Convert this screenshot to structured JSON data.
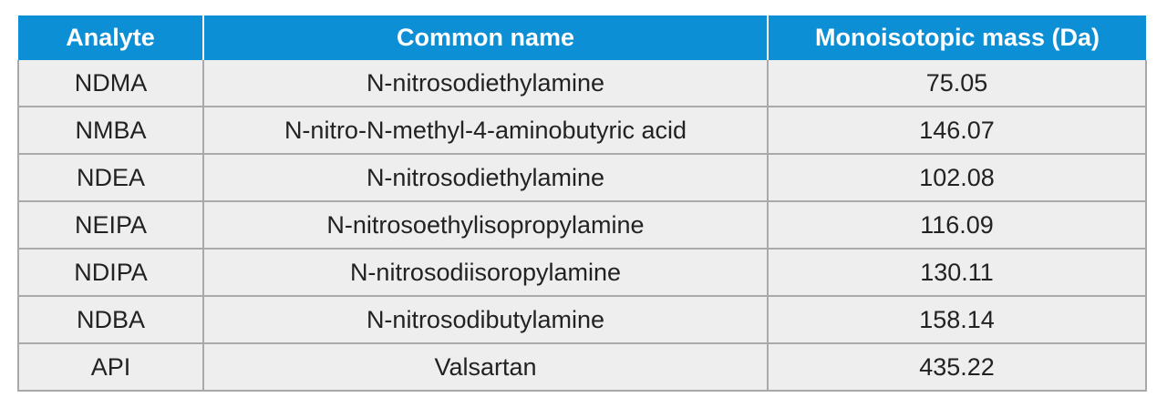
{
  "table": {
    "headers": [
      "Analyte",
      "Common name",
      "Monoisotopic mass (Da)"
    ],
    "rows": [
      [
        "NDMA",
        "N-nitrosodiethylamine",
        "75.05"
      ],
      [
        "NMBA",
        "N-nitro-N-methyl-4-aminobutyric acid",
        "146.07"
      ],
      [
        "NDEA",
        "N-nitrosodiethylamine",
        "102.08"
      ],
      [
        "NEIPA",
        "N-nitrosoethylisopropylamine",
        "116.09"
      ],
      [
        "NDIPA",
        "N-nitrosodiisoropylamine",
        "130.11"
      ],
      [
        "NDBA",
        "N-nitrosodibutylamine",
        "158.14"
      ],
      [
        "API",
        "Valsartan",
        "435.22"
      ]
    ]
  },
  "colors": {
    "header_bg": "#0d8fd6",
    "header_text": "#ffffff",
    "cell_bg": "#eeeeef",
    "border": "#a9a9ab"
  }
}
